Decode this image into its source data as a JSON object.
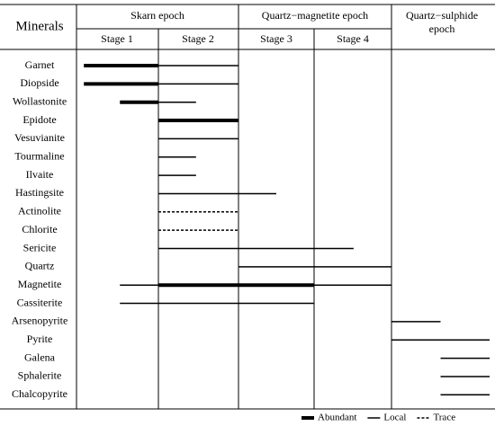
{
  "header": {
    "first_column": "Minerals",
    "epochs": [
      "Skarn epoch",
      "Quartz−magnetite epoch",
      "Quartz−sulphide epoch"
    ],
    "stages": [
      "Stage 1",
      "Stage 2",
      "Stage 3",
      "Stage 4"
    ]
  },
  "minerals": [
    {
      "name": "Garnet",
      "segments": [
        {
          "from": 0.09,
          "to": 1,
          "style": "abundant"
        },
        {
          "from": 1,
          "to": 2,
          "style": "local"
        }
      ]
    },
    {
      "name": "Diopside",
      "segments": [
        {
          "from": 0.09,
          "to": 1,
          "style": "abundant"
        },
        {
          "from": 1,
          "to": 2,
          "style": "local"
        }
      ]
    },
    {
      "name": "Wollastonite",
      "segments": [
        {
          "from": 0.53,
          "to": 1,
          "style": "abundant"
        },
        {
          "from": 1,
          "to": 1.47,
          "style": "local"
        }
      ]
    },
    {
      "name": "Epidote",
      "segments": [
        {
          "from": 1,
          "to": 2,
          "style": "abundant"
        }
      ]
    },
    {
      "name": "Vesuvianite",
      "segments": [
        {
          "from": 1,
          "to": 2,
          "style": "local"
        }
      ]
    },
    {
      "name": "Tourmaline",
      "segments": [
        {
          "from": 1,
          "to": 1.47,
          "style": "local"
        }
      ]
    },
    {
      "name": "Ilvaite",
      "segments": [
        {
          "from": 1,
          "to": 1.47,
          "style": "local"
        }
      ]
    },
    {
      "name": "Hastingsite",
      "segments": [
        {
          "from": 1,
          "to": 2.5,
          "style": "local"
        }
      ]
    },
    {
      "name": "Actinolite",
      "segments": [
        {
          "from": 1,
          "to": 2,
          "style": "trace"
        }
      ]
    },
    {
      "name": "Chlorite",
      "segments": [
        {
          "from": 1,
          "to": 2,
          "style": "trace"
        }
      ]
    },
    {
      "name": "Sericite",
      "segments": [
        {
          "from": 1,
          "to": 3.51,
          "style": "local"
        }
      ]
    },
    {
      "name": "Quartz",
      "segments": [
        {
          "from": 2,
          "to": 4,
          "style": "local"
        }
      ]
    },
    {
      "name": "Magnetite",
      "segments": [
        {
          "from": 0.53,
          "to": 1,
          "style": "local"
        },
        {
          "from": 1,
          "to": 3,
          "style": "abundant"
        },
        {
          "from": 3,
          "to": 4,
          "style": "local"
        }
      ]
    },
    {
      "name": "Cassiterite",
      "segments": [
        {
          "from": 0.53,
          "to": 3,
          "style": "local"
        }
      ]
    },
    {
      "name": "Arsenopyrite",
      "segments": [
        {
          "from": 4,
          "to": 4.5,
          "style": "local"
        }
      ]
    },
    {
      "name": "Pyrite",
      "segments": [
        {
          "from": 4,
          "to": 5,
          "style": "local"
        }
      ]
    },
    {
      "name": "Galena",
      "segments": [
        {
          "from": 4.5,
          "to": 5,
          "style": "local"
        }
      ]
    },
    {
      "name": "Sphalerite",
      "segments": [
        {
          "from": 4.5,
          "to": 5,
          "style": "local"
        }
      ]
    },
    {
      "name": "Chalcopyrite",
      "segments": [
        {
          "from": 4.5,
          "to": 5,
          "style": "local"
        }
      ]
    }
  ],
  "legend": [
    {
      "style": "abundant",
      "label": "Abundant"
    },
    {
      "style": "local",
      "label": "Local"
    },
    {
      "style": "trace",
      "label": "Trace"
    }
  ]
}
